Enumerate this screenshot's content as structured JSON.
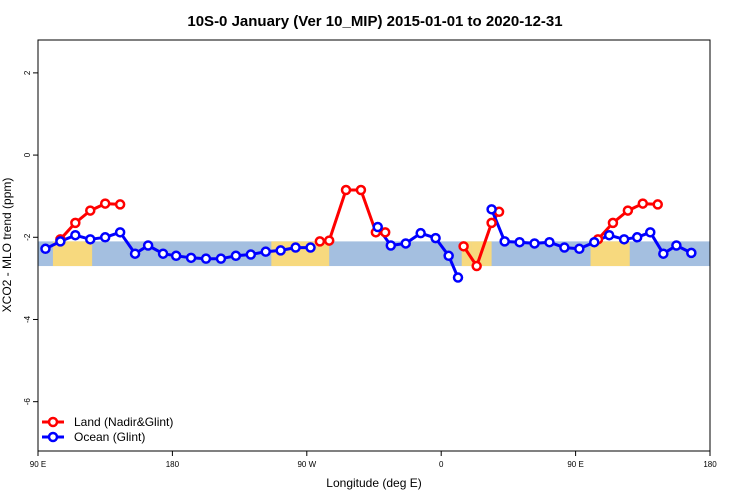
{
  "chart_data": {
    "type": "line",
    "title": "10S-0 January (Ver 10_MIP)   2015-01-01 to 2020-12-31",
    "xlabel": "Longitude (deg E)",
    "ylabel": "XCO2 - MLO trend (ppm)",
    "xlim": [
      90,
      450
    ],
    "ylim": [
      -7.2,
      2.8
    ],
    "x_ticks": [
      {
        "value": 90,
        "label": "90 E"
      },
      {
        "value": 162,
        "label": "180"
      },
      {
        "value": 234,
        "label": "90 W"
      },
      {
        "value": 306,
        "label": "0"
      },
      {
        "value": 378,
        "label": "90 E"
      },
      {
        "value": 450,
        "label": "180"
      }
    ],
    "y_ticks": [
      {
        "value": 2,
        "label": "2"
      },
      {
        "value": 0,
        "label": "0"
      },
      {
        "value": -2,
        "label": "-2"
      },
      {
        "value": -4,
        "label": "-4"
      },
      {
        "value": -6,
        "label": "-6"
      }
    ],
    "band": {
      "from": -2.7,
      "to": -2.1,
      "ocean_color": "#a4bfe0",
      "land_color": "#f7d97e",
      "land_ranges": [
        [
          98,
          119
        ],
        [
          215,
          246
        ],
        [
          317,
          322
        ],
        [
          322,
          333
        ],
        [
          386,
          407
        ]
      ]
    },
    "series": [
      {
        "name": "Land (Nadir&Glint)",
        "color": "#ff0000",
        "segments": [
          [
            [
              102,
              -2.05
            ],
            [
              110,
              -1.65
            ],
            [
              118,
              -1.35
            ],
            [
              126,
              -1.18
            ],
            [
              134,
              -1.2
            ]
          ],
          [
            [
              241,
              -2.1
            ],
            [
              246,
              -2.08
            ],
            [
              255,
              -0.85
            ],
            [
              263,
              -0.85
            ],
            [
              271,
              -1.88
            ],
            [
              276,
              -1.88
            ]
          ],
          [
            [
              318,
              -2.22
            ],
            [
              325,
              -2.7
            ],
            [
              333,
              -1.65
            ],
            [
              337,
              -1.38
            ]
          ],
          [
            [
              390,
              -2.05
            ],
            [
              398,
              -1.65
            ],
            [
              406,
              -1.35
            ],
            [
              414,
              -1.18
            ],
            [
              422,
              -1.2
            ]
          ]
        ]
      },
      {
        "name": "Ocean (Glint)",
        "color": "#0000ff",
        "segments": [
          [
            [
              94,
              -2.28
            ],
            [
              102,
              -2.1
            ],
            [
              110,
              -1.95
            ],
            [
              118,
              -2.05
            ],
            [
              126,
              -2.0
            ],
            [
              134,
              -1.88
            ],
            [
              142,
              -2.4
            ],
            [
              149,
              -2.2
            ],
            [
              157,
              -2.4
            ],
            [
              164,
              -2.45
            ],
            [
              172,
              -2.5
            ],
            [
              180,
              -2.52
            ],
            [
              188,
              -2.52
            ],
            [
              196,
              -2.45
            ],
            [
              204,
              -2.42
            ],
            [
              212,
              -2.35
            ],
            [
              220,
              -2.32
            ],
            [
              228,
              -2.25
            ],
            [
              236,
              -2.25
            ]
          ],
          [
            [
              272,
              -1.75
            ],
            [
              279,
              -2.2
            ],
            [
              287,
              -2.15
            ],
            [
              295,
              -1.9
            ],
            [
              303,
              -2.02
            ],
            [
              310,
              -2.45
            ],
            [
              315,
              -2.98
            ]
          ],
          [
            [
              333,
              -1.32
            ],
            [
              340,
              -2.1
            ],
            [
              348,
              -2.12
            ],
            [
              356,
              -2.15
            ],
            [
              364,
              -2.12
            ],
            [
              372,
              -2.25
            ],
            [
              380,
              -2.28
            ],
            [
              388,
              -2.12
            ],
            [
              396,
              -1.95
            ],
            [
              404,
              -2.05
            ],
            [
              411,
              -2.0
            ],
            [
              418,
              -1.88
            ],
            [
              425,
              -2.4
            ],
            [
              432,
              -2.2
            ],
            [
              440,
              -2.38
            ]
          ]
        ]
      }
    ],
    "legend": {
      "position": "bottom-left",
      "entries": [
        "Land (Nadir&Glint)",
        "Ocean (Glint)"
      ]
    },
    "grid": false
  }
}
